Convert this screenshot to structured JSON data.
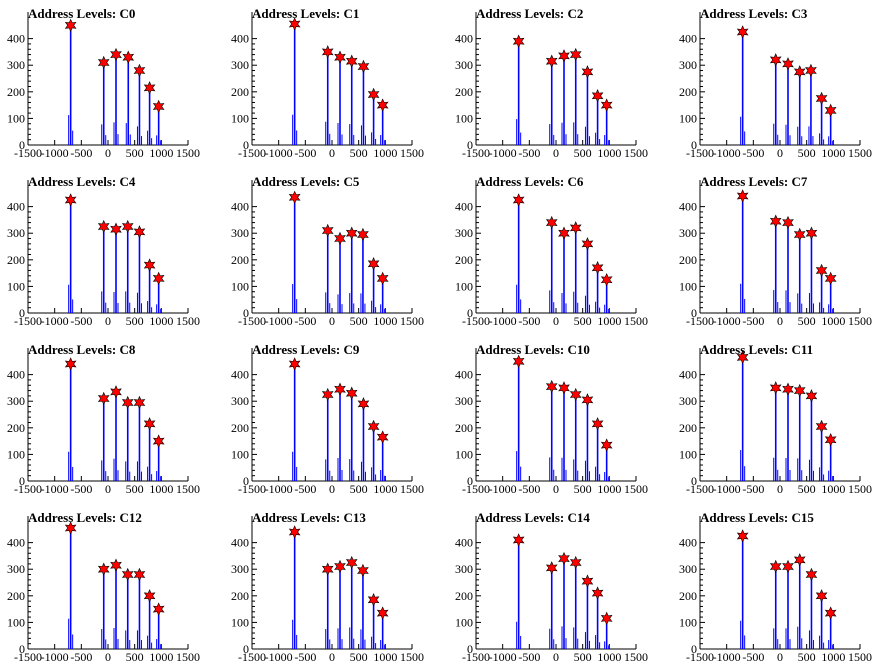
{
  "chart_data": [
    {
      "type": "bar",
      "title": "Address Levels: C0",
      "xlim": [
        -1500,
        1500
      ],
      "ylim": [
        0,
        470
      ],
      "xticks": [
        -1500,
        -1000,
        -500,
        0,
        500,
        1000,
        1500
      ],
      "yticks": [
        0,
        100,
        200,
        300,
        400
      ],
      "peaks": [
        {
          "x": -700,
          "y": 450
        },
        {
          "x": -80,
          "y": 310
        },
        {
          "x": 150,
          "y": 340
        },
        {
          "x": 380,
          "y": 330
        },
        {
          "x": 590,
          "y": 280
        },
        {
          "x": 780,
          "y": 215
        },
        {
          "x": 950,
          "y": 145
        }
      ]
    },
    {
      "type": "bar",
      "title": "Address Levels: C1",
      "xlim": [
        -1500,
        1500
      ],
      "ylim": [
        0,
        470
      ],
      "xticks": [
        -1500,
        -1000,
        -500,
        0,
        500,
        1000,
        1500
      ],
      "yticks": [
        0,
        100,
        200,
        300,
        400
      ],
      "peaks": [
        {
          "x": -700,
          "y": 455
        },
        {
          "x": -80,
          "y": 350
        },
        {
          "x": 150,
          "y": 330
        },
        {
          "x": 370,
          "y": 315
        },
        {
          "x": 590,
          "y": 295
        },
        {
          "x": 780,
          "y": 190
        },
        {
          "x": 950,
          "y": 150
        }
      ]
    },
    {
      "type": "bar",
      "title": "Address Levels: C2",
      "xlim": [
        -1500,
        1500
      ],
      "ylim": [
        0,
        470
      ],
      "xticks": [
        -1500,
        -1000,
        -500,
        0,
        500,
        1000,
        1500
      ],
      "yticks": [
        0,
        100,
        200,
        300,
        400
      ],
      "peaks": [
        {
          "x": -700,
          "y": 390
        },
        {
          "x": -80,
          "y": 315
        },
        {
          "x": 150,
          "y": 335
        },
        {
          "x": 370,
          "y": 340
        },
        {
          "x": 590,
          "y": 275
        },
        {
          "x": 780,
          "y": 185
        },
        {
          "x": 950,
          "y": 150
        }
      ]
    },
    {
      "type": "bar",
      "title": "Address Levels: C3",
      "xlim": [
        -1500,
        1500
      ],
      "ylim": [
        0,
        470
      ],
      "xticks": [
        -1500,
        -1000,
        -500,
        0,
        500,
        1000,
        1500
      ],
      "yticks": [
        0,
        100,
        200,
        300,
        400
      ],
      "peaks": [
        {
          "x": -700,
          "y": 425
        },
        {
          "x": -80,
          "y": 320
        },
        {
          "x": 150,
          "y": 305
        },
        {
          "x": 370,
          "y": 275
        },
        {
          "x": 580,
          "y": 280
        },
        {
          "x": 780,
          "y": 175
        },
        {
          "x": 950,
          "y": 130
        }
      ]
    },
    {
      "type": "bar",
      "title": "Address Levels: C4",
      "xlim": [
        -1500,
        1500
      ],
      "ylim": [
        0,
        470
      ],
      "xticks": [
        -1500,
        -1000,
        -500,
        0,
        500,
        1000,
        1500
      ],
      "yticks": [
        0,
        100,
        200,
        300,
        400
      ],
      "peaks": [
        {
          "x": -700,
          "y": 425
        },
        {
          "x": -80,
          "y": 325
        },
        {
          "x": 150,
          "y": 315
        },
        {
          "x": 370,
          "y": 325
        },
        {
          "x": 590,
          "y": 305
        },
        {
          "x": 780,
          "y": 180
        },
        {
          "x": 950,
          "y": 130
        }
      ]
    },
    {
      "type": "bar",
      "title": "Address Levels: C5",
      "xlim": [
        -1500,
        1500
      ],
      "ylim": [
        0,
        470
      ],
      "xticks": [
        -1500,
        -1000,
        -500,
        0,
        500,
        1000,
        1500
      ],
      "yticks": [
        0,
        100,
        200,
        300,
        400
      ],
      "peaks": [
        {
          "x": -700,
          "y": 435
        },
        {
          "x": -80,
          "y": 310
        },
        {
          "x": 150,
          "y": 280
        },
        {
          "x": 370,
          "y": 300
        },
        {
          "x": 580,
          "y": 295
        },
        {
          "x": 780,
          "y": 185
        },
        {
          "x": 950,
          "y": 130
        }
      ]
    },
    {
      "type": "bar",
      "title": "Address Levels: C6",
      "xlim": [
        -1500,
        1500
      ],
      "ylim": [
        0,
        470
      ],
      "xticks": [
        -1500,
        -1000,
        -500,
        0,
        500,
        1000,
        1500
      ],
      "yticks": [
        0,
        100,
        200,
        300,
        400
      ],
      "peaks": [
        {
          "x": -700,
          "y": 425
        },
        {
          "x": -80,
          "y": 340
        },
        {
          "x": 150,
          "y": 300
        },
        {
          "x": 370,
          "y": 320
        },
        {
          "x": 590,
          "y": 260
        },
        {
          "x": 780,
          "y": 170
        },
        {
          "x": 950,
          "y": 125
        }
      ]
    },
    {
      "type": "bar",
      "title": "Address Levels: C7",
      "xlim": [
        -1500,
        1500
      ],
      "ylim": [
        0,
        470
      ],
      "xticks": [
        -1500,
        -1000,
        -500,
        0,
        500,
        1000,
        1500
      ],
      "yticks": [
        0,
        100,
        200,
        300,
        400
      ],
      "peaks": [
        {
          "x": -700,
          "y": 440
        },
        {
          "x": -80,
          "y": 345
        },
        {
          "x": 150,
          "y": 340
        },
        {
          "x": 370,
          "y": 295
        },
        {
          "x": 590,
          "y": 300
        },
        {
          "x": 780,
          "y": 160
        },
        {
          "x": 950,
          "y": 130
        }
      ]
    },
    {
      "type": "bar",
      "title": "Address Levels: C8",
      "xlim": [
        -1500,
        1500
      ],
      "ylim": [
        0,
        470
      ],
      "xticks": [
        -1500,
        -1000,
        -500,
        0,
        500,
        1000,
        1500
      ],
      "yticks": [
        0,
        100,
        200,
        300,
        400
      ],
      "peaks": [
        {
          "x": -700,
          "y": 440
        },
        {
          "x": -80,
          "y": 310
        },
        {
          "x": 150,
          "y": 335
        },
        {
          "x": 370,
          "y": 295
        },
        {
          "x": 590,
          "y": 295
        },
        {
          "x": 780,
          "y": 215
        },
        {
          "x": 950,
          "y": 150
        }
      ]
    },
    {
      "type": "bar",
      "title": "Address Levels: C9",
      "xlim": [
        -1500,
        1500
      ],
      "ylim": [
        0,
        470
      ],
      "xticks": [
        -1500,
        -1000,
        -500,
        0,
        500,
        1000,
        1500
      ],
      "yticks": [
        0,
        100,
        200,
        300,
        400
      ],
      "peaks": [
        {
          "x": -700,
          "y": 440
        },
        {
          "x": -80,
          "y": 325
        },
        {
          "x": 150,
          "y": 345
        },
        {
          "x": 370,
          "y": 330
        },
        {
          "x": 590,
          "y": 290
        },
        {
          "x": 780,
          "y": 205
        },
        {
          "x": 950,
          "y": 165
        }
      ]
    },
    {
      "type": "bar",
      "title": "Address Levels: C10",
      "xlim": [
        -1500,
        1500
      ],
      "ylim": [
        0,
        470
      ],
      "xticks": [
        -1500,
        -1000,
        -500,
        0,
        500,
        1000,
        1500
      ],
      "yticks": [
        0,
        100,
        200,
        300,
        400
      ],
      "peaks": [
        {
          "x": -700,
          "y": 450
        },
        {
          "x": -80,
          "y": 355
        },
        {
          "x": 150,
          "y": 350
        },
        {
          "x": 370,
          "y": 325
        },
        {
          "x": 590,
          "y": 305
        },
        {
          "x": 780,
          "y": 215
        },
        {
          "x": 950,
          "y": 135
        }
      ]
    },
    {
      "type": "bar",
      "title": "Address Levels: C11",
      "xlim": [
        -1500,
        1500
      ],
      "ylim": [
        0,
        470
      ],
      "xticks": [
        -1500,
        -1000,
        -500,
        0,
        500,
        1000,
        1500
      ],
      "yticks": [
        0,
        100,
        200,
        300,
        400
      ],
      "peaks": [
        {
          "x": -700,
          "y": 465
        },
        {
          "x": -80,
          "y": 350
        },
        {
          "x": 150,
          "y": 345
        },
        {
          "x": 370,
          "y": 340
        },
        {
          "x": 590,
          "y": 320
        },
        {
          "x": 780,
          "y": 205
        },
        {
          "x": 950,
          "y": 155
        }
      ]
    },
    {
      "type": "bar",
      "title": "Address Levels: C12",
      "xlim": [
        -1500,
        1500
      ],
      "ylim": [
        0,
        470
      ],
      "xticks": [
        -1500,
        -1000,
        -500,
        0,
        500,
        1000,
        1500
      ],
      "yticks": [
        0,
        100,
        200,
        300,
        400
      ],
      "peaks": [
        {
          "x": -700,
          "y": 455
        },
        {
          "x": -80,
          "y": 300
        },
        {
          "x": 150,
          "y": 315
        },
        {
          "x": 370,
          "y": 280
        },
        {
          "x": 590,
          "y": 280
        },
        {
          "x": 780,
          "y": 200
        },
        {
          "x": 950,
          "y": 150
        }
      ]
    },
    {
      "type": "bar",
      "title": "Address Levels: C13",
      "xlim": [
        -1500,
        1500
      ],
      "ylim": [
        0,
        470
      ],
      "xticks": [
        -1500,
        -1000,
        -500,
        0,
        500,
        1000,
        1500
      ],
      "yticks": [
        0,
        100,
        200,
        300,
        400
      ],
      "peaks": [
        {
          "x": -700,
          "y": 440
        },
        {
          "x": -80,
          "y": 300
        },
        {
          "x": 150,
          "y": 310
        },
        {
          "x": 370,
          "y": 325
        },
        {
          "x": 580,
          "y": 295
        },
        {
          "x": 780,
          "y": 185
        },
        {
          "x": 950,
          "y": 135
        }
      ]
    },
    {
      "type": "bar",
      "title": "Address Levels: C14",
      "xlim": [
        -1500,
        1500
      ],
      "ylim": [
        0,
        470
      ],
      "xticks": [
        -1500,
        -1000,
        -500,
        0,
        500,
        1000,
        1500
      ],
      "yticks": [
        0,
        100,
        200,
        300,
        400
      ],
      "peaks": [
        {
          "x": -700,
          "y": 410
        },
        {
          "x": -80,
          "y": 305
        },
        {
          "x": 150,
          "y": 340
        },
        {
          "x": 370,
          "y": 325
        },
        {
          "x": 590,
          "y": 255
        },
        {
          "x": 780,
          "y": 210
        },
        {
          "x": 950,
          "y": 115
        }
      ]
    },
    {
      "type": "bar",
      "title": "Address Levels: C15",
      "xlim": [
        -1500,
        1500
      ],
      "ylim": [
        0,
        470
      ],
      "xticks": [
        -1500,
        -1000,
        -500,
        0,
        500,
        1000,
        1500
      ],
      "yticks": [
        0,
        100,
        200,
        300,
        400
      ],
      "peaks": [
        {
          "x": -700,
          "y": 425
        },
        {
          "x": -80,
          "y": 310
        },
        {
          "x": 150,
          "y": 310
        },
        {
          "x": 370,
          "y": 335
        },
        {
          "x": 590,
          "y": 280
        },
        {
          "x": 780,
          "y": 200
        },
        {
          "x": 950,
          "y": 135
        }
      ]
    }
  ],
  "colors": {
    "bars": "#0000ff",
    "marker_fill": "#ff0000",
    "marker_stroke": "#000000",
    "axis": "#000000"
  }
}
